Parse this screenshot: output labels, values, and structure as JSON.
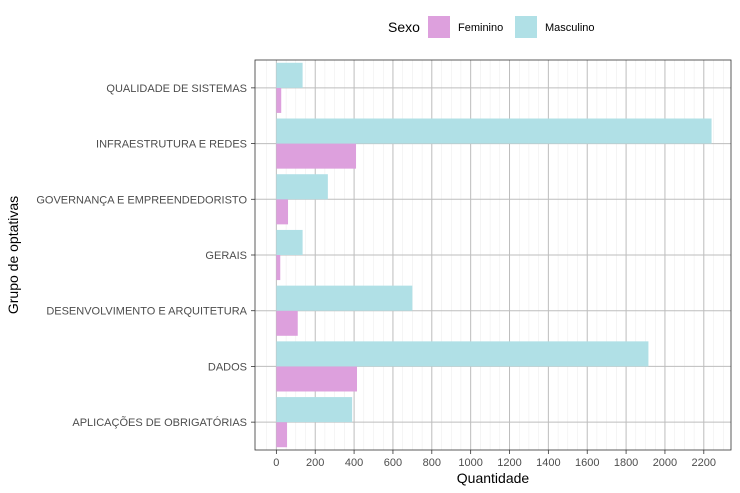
{
  "chart_data": {
    "type": "bar",
    "orientation": "horizontal",
    "categories": [
      "QUALIDADE DE SISTEMAS",
      "INFRAESTRUTURA E REDES",
      "GOVERNANÇA E EMPREENDEDORISTO",
      "GERAIS",
      "DESENVOLVIMENTO E ARQUITETURA",
      "DADOS",
      "APLICAÇÕES DE OBRIGATÓRIAS"
    ],
    "series": [
      {
        "name": "Feminino",
        "color": "#DDA0DD",
        "values": [
          25,
          410,
          60,
          20,
          110,
          415,
          55
        ]
      },
      {
        "name": "Masculino",
        "color": "#B0E0E6",
        "values": [
          135,
          2240,
          265,
          135,
          700,
          1915,
          390
        ]
      }
    ],
    "xlabel": "Quantidade",
    "ylabel": "Grupo de optativas",
    "xlim": [
      -110,
      2340
    ],
    "xticks": [
      0,
      200,
      400,
      600,
      800,
      1000,
      1200,
      1400,
      1600,
      1800,
      2000,
      2200
    ],
    "xtick_labels": [
      "0",
      "200",
      "400",
      "600",
      "800",
      "1000",
      "1200",
      "1400",
      "1600",
      "1800",
      "2000",
      "2200"
    ],
    "legend": {
      "title": "Sexo",
      "placement": "top",
      "entries": [
        "Feminino",
        "Masculino"
      ]
    },
    "grid": true,
    "theme": "light"
  }
}
